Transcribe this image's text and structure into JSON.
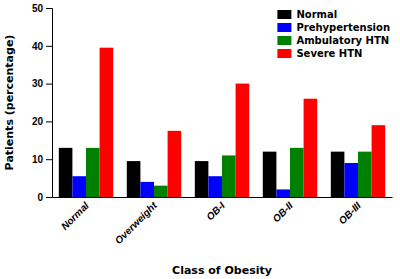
{
  "chart_data": {
    "type": "bar",
    "categories": [
      "Normal",
      "Overweight",
      "OB-I",
      "OB-II",
      "OB-III"
    ],
    "series": [
      {
        "name": "Normal",
        "color": "#000000",
        "values": [
          13,
          9.5,
          9.5,
          12,
          12
        ]
      },
      {
        "name": "Prehypertension",
        "color": "#0000ff",
        "values": [
          5.5,
          4,
          5.5,
          2,
          9
        ]
      },
      {
        "name": "Ambulatory HTN",
        "color": "#008000",
        "values": [
          13,
          3,
          11,
          13,
          12
        ]
      },
      {
        "name": "Severe HTN",
        "color": "#ff0000",
        "values": [
          39.5,
          17.5,
          30,
          26,
          19
        ]
      }
    ],
    "xlabel": "Class of Obesity",
    "ylabel": "Patients (percentage)",
    "ylim": [
      0,
      50
    ],
    "yticks": [
      0,
      10,
      20,
      30,
      40,
      50
    ],
    "grid": false,
    "legend": "upper right"
  }
}
